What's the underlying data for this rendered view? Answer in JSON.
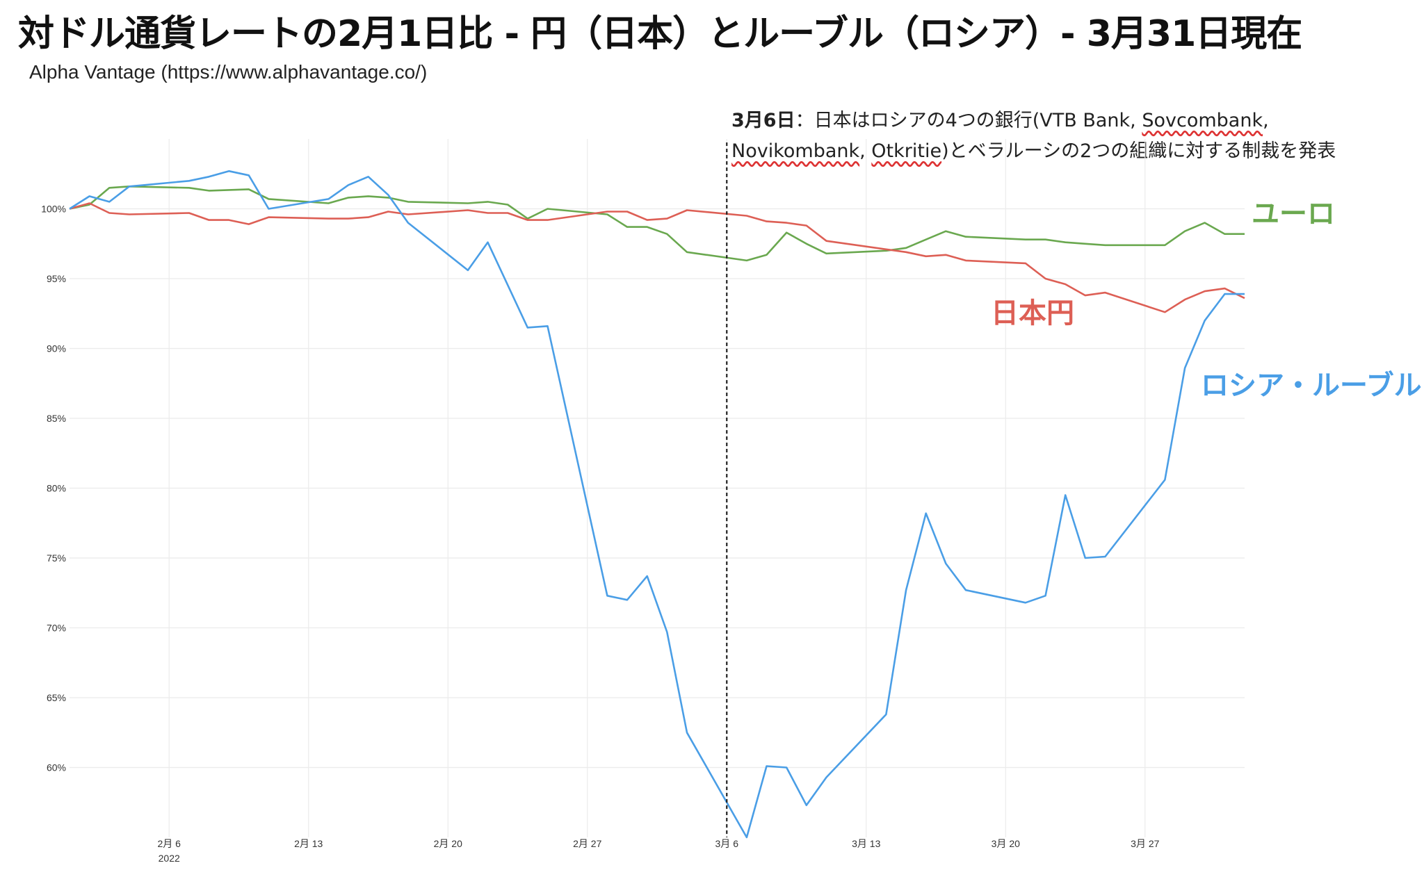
{
  "title": "対ドル通貨レートの2月1日比 - 円（日本）とルーブル（ロシア）- 3月31日現在",
  "subtitle": "Alpha Vantage (https://www.alphavantage.co/)",
  "annotation": {
    "date": "3月6日",
    "line1_rest": "：日本はロシアの4つの銀行(VTB Bank, ",
    "sovcombank": "Sovcombank",
    "line1_tail": ",",
    "novikombank": "Novikombank",
    "sep": ", ",
    "otkritie": "Otkritie",
    "line2_rest": ")とベラルーシの2つの組織に対する制裁を発表"
  },
  "labels": {
    "euro": "ユーロ",
    "yen": "日本円",
    "ruble": "ロシア・ルーブル"
  },
  "colors": {
    "euro": "#6aa84f",
    "yen": "#dd5f55",
    "ruble": "#4a9ee6",
    "grid": "#ebebeb"
  },
  "chart_data": {
    "type": "line",
    "title": "対ドル通貨レートの2月1日比",
    "ylabel": "",
    "xlabel": "",
    "ylim": [
      55,
      105
    ],
    "yticks": [
      60,
      65,
      70,
      75,
      80,
      85,
      90,
      95,
      100
    ],
    "ytick_labels": [
      "60%",
      "65%",
      "70%",
      "75%",
      "80%",
      "85%",
      "90%",
      "95%",
      "100%"
    ],
    "x_range_day": [
      1,
      60
    ],
    "xticks": [
      {
        "day": 6,
        "label": "2月 6",
        "sub": "2022"
      },
      {
        "day": 13,
        "label": "2月 13",
        "sub": ""
      },
      {
        "day": 20,
        "label": "2月 20",
        "sub": ""
      },
      {
        "day": 27,
        "label": "2月 27",
        "sub": ""
      },
      {
        "day": 34,
        "label": "3月 6",
        "sub": ""
      },
      {
        "day": 41,
        "label": "3月 13",
        "sub": ""
      },
      {
        "day": 48,
        "label": "3月 20",
        "sub": ""
      },
      {
        "day": 55,
        "label": "3月 27",
        "sub": ""
      }
    ],
    "event_line_day": 34,
    "series": [
      {
        "name": "ユーロ",
        "key": "euro",
        "points": [
          [
            1,
            100.0
          ],
          [
            2,
            100.3
          ],
          [
            3,
            101.5
          ],
          [
            4,
            101.6
          ],
          [
            7,
            101.5
          ],
          [
            8,
            101.3
          ],
          [
            10,
            101.4
          ],
          [
            11,
            100.7
          ],
          [
            14,
            100.4
          ],
          [
            15,
            100.8
          ],
          [
            16,
            100.9
          ],
          [
            17,
            100.8
          ],
          [
            18,
            100.5
          ],
          [
            21,
            100.4
          ],
          [
            22,
            100.5
          ],
          [
            23,
            100.3
          ],
          [
            24,
            99.3
          ],
          [
            25,
            100.0
          ],
          [
            28,
            99.6
          ],
          [
            29,
            98.7
          ],
          [
            30,
            98.7
          ],
          [
            31,
            98.2
          ],
          [
            32,
            96.9
          ],
          [
            35,
            96.3
          ],
          [
            36,
            96.7
          ],
          [
            37,
            98.3
          ],
          [
            38,
            97.5
          ],
          [
            39,
            96.8
          ],
          [
            42,
            97.0
          ],
          [
            43,
            97.2
          ],
          [
            44,
            97.8
          ],
          [
            45,
            98.4
          ],
          [
            46,
            98.0
          ],
          [
            49,
            97.8
          ],
          [
            50,
            97.8
          ],
          [
            51,
            97.6
          ],
          [
            52,
            97.5
          ],
          [
            53,
            97.4
          ],
          [
            56,
            97.4
          ],
          [
            57,
            98.4
          ],
          [
            58,
            99.0
          ],
          [
            59,
            98.2
          ],
          [
            60,
            98.2
          ]
        ]
      },
      {
        "name": "日本円",
        "key": "yen",
        "points": [
          [
            1,
            100.0
          ],
          [
            2,
            100.4
          ],
          [
            3,
            99.7
          ],
          [
            4,
            99.6
          ],
          [
            7,
            99.7
          ],
          [
            8,
            99.2
          ],
          [
            9,
            99.2
          ],
          [
            10,
            98.9
          ],
          [
            11,
            99.4
          ],
          [
            14,
            99.3
          ],
          [
            15,
            99.3
          ],
          [
            16,
            99.4
          ],
          [
            17,
            99.8
          ],
          [
            18,
            99.6
          ],
          [
            21,
            99.9
          ],
          [
            22,
            99.7
          ],
          [
            23,
            99.7
          ],
          [
            24,
            99.2
          ],
          [
            25,
            99.2
          ],
          [
            27,
            99.6
          ],
          [
            28,
            99.8
          ],
          [
            29,
            99.8
          ],
          [
            30,
            99.2
          ],
          [
            31,
            99.3
          ],
          [
            32,
            99.9
          ],
          [
            35,
            99.5
          ],
          [
            36,
            99.1
          ],
          [
            37,
            99.0
          ],
          [
            38,
            98.8
          ],
          [
            39,
            97.7
          ],
          [
            42,
            97.1
          ],
          [
            43,
            96.9
          ],
          [
            44,
            96.6
          ],
          [
            45,
            96.7
          ],
          [
            46,
            96.3
          ],
          [
            49,
            96.1
          ],
          [
            50,
            95.0
          ],
          [
            51,
            94.6
          ],
          [
            52,
            93.8
          ],
          [
            53,
            94.0
          ],
          [
            56,
            92.6
          ],
          [
            57,
            93.5
          ],
          [
            58,
            94.1
          ],
          [
            59,
            94.3
          ],
          [
            60,
            93.6
          ]
        ]
      },
      {
        "name": "ロシア・ルーブル",
        "key": "ruble",
        "points": [
          [
            1,
            100.0
          ],
          [
            2,
            100.9
          ],
          [
            3,
            100.5
          ],
          [
            4,
            101.6
          ],
          [
            7,
            102.0
          ],
          [
            8,
            102.3
          ],
          [
            9,
            102.7
          ],
          [
            10,
            102.4
          ],
          [
            11,
            100.0
          ],
          [
            14,
            100.7
          ],
          [
            15,
            101.7
          ],
          [
            16,
            102.3
          ],
          [
            17,
            101.0
          ],
          [
            18,
            99.0
          ],
          [
            21,
            95.6
          ],
          [
            22,
            97.6
          ],
          [
            24,
            91.5
          ],
          [
            25,
            91.6
          ],
          [
            28,
            72.3
          ],
          [
            29,
            72.0
          ],
          [
            30,
            73.7
          ],
          [
            31,
            69.7
          ],
          [
            32,
            62.5
          ],
          [
            35,
            55.0
          ],
          [
            36,
            60.1
          ],
          [
            37,
            60.0
          ],
          [
            38,
            57.3
          ],
          [
            39,
            59.3
          ],
          [
            42,
            63.8
          ],
          [
            43,
            72.7
          ],
          [
            44,
            78.2
          ],
          [
            45,
            74.6
          ],
          [
            46,
            72.7
          ],
          [
            49,
            71.8
          ],
          [
            50,
            72.3
          ],
          [
            51,
            79.5
          ],
          [
            52,
            75.0
          ],
          [
            53,
            75.1
          ],
          [
            56,
            80.6
          ],
          [
            57,
            88.6
          ],
          [
            58,
            92.0
          ],
          [
            59,
            93.9
          ],
          [
            60,
            93.9
          ]
        ]
      }
    ]
  }
}
